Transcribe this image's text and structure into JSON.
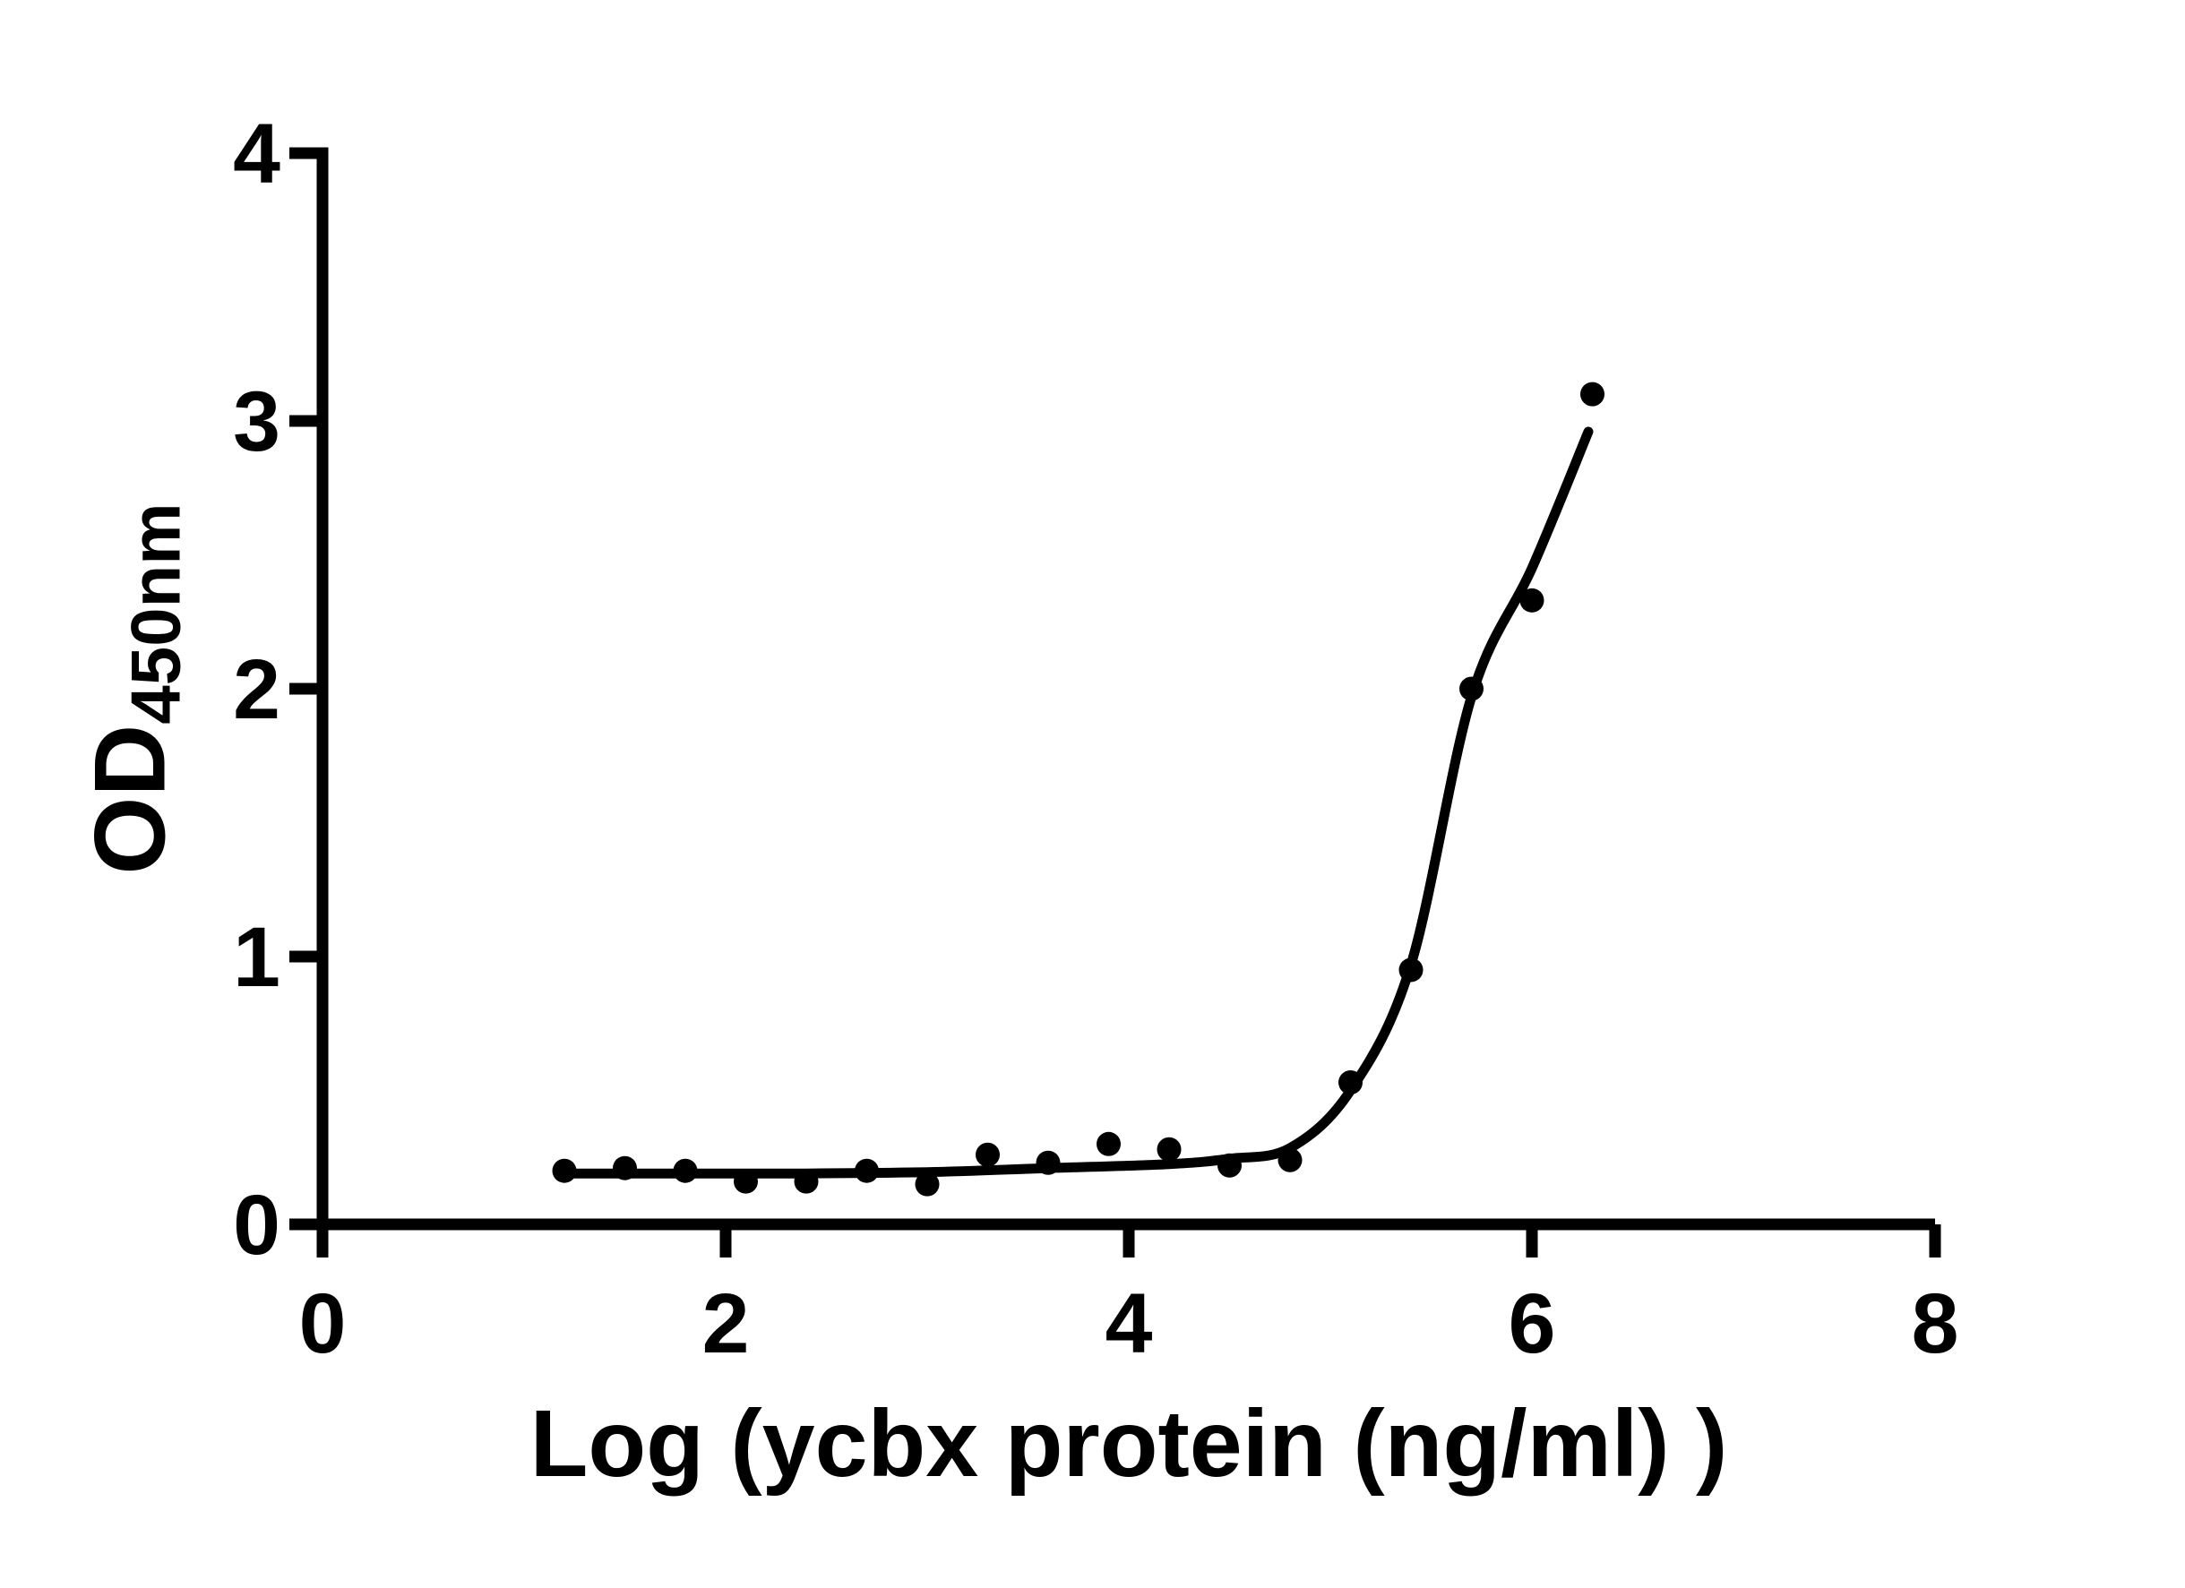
{
  "chart_data": {
    "type": "scatter",
    "title": "",
    "xlabel": "Log (ycbx protein (ng/ml) )",
    "ylabel": "OD",
    "ylabel_subscript": "450nm",
    "xlim": [
      0,
      8
    ],
    "ylim": [
      0,
      4
    ],
    "x_ticks": [
      0,
      2,
      4,
      6,
      8
    ],
    "y_ticks": [
      0,
      1,
      2,
      3,
      4
    ],
    "grid": false,
    "legend_position": "none",
    "axis_color": "#000000",
    "marker_color": "#000000",
    "line_color": "#000000",
    "background_color": "#ffffff",
    "points": [
      {
        "x": 1.2,
        "y": 0.2
      },
      {
        "x": 1.5,
        "y": 0.21
      },
      {
        "x": 1.8,
        "y": 0.2
      },
      {
        "x": 2.1,
        "y": 0.16
      },
      {
        "x": 2.4,
        "y": 0.16
      },
      {
        "x": 2.7,
        "y": 0.2
      },
      {
        "x": 3.0,
        "y": 0.15
      },
      {
        "x": 3.3,
        "y": 0.26
      },
      {
        "x": 3.6,
        "y": 0.23
      },
      {
        "x": 3.9,
        "y": 0.3
      },
      {
        "x": 4.2,
        "y": 0.28
      },
      {
        "x": 4.5,
        "y": 0.22
      },
      {
        "x": 4.8,
        "y": 0.24
      },
      {
        "x": 5.1,
        "y": 0.53
      },
      {
        "x": 5.4,
        "y": 0.95
      },
      {
        "x": 5.7,
        "y": 2.0
      },
      {
        "x": 6.0,
        "y": 2.33
      },
      {
        "x": 6.3,
        "y": 3.1
      }
    ],
    "fit_curve": {
      "description": "sigmoidal 4PL fit line",
      "anchors": [
        [
          1.2,
          0.19
        ],
        [
          1.8,
          0.19
        ],
        [
          2.4,
          0.19
        ],
        [
          3.0,
          0.195
        ],
        [
          3.6,
          0.21
        ],
        [
          4.2,
          0.225
        ],
        [
          4.5,
          0.245
        ],
        [
          4.8,
          0.285
        ],
        [
          5.1,
          0.5
        ],
        [
          5.4,
          0.97
        ],
        [
          5.7,
          1.97
        ],
        [
          6.0,
          2.45
        ],
        [
          6.28,
          2.96
        ]
      ]
    }
  }
}
